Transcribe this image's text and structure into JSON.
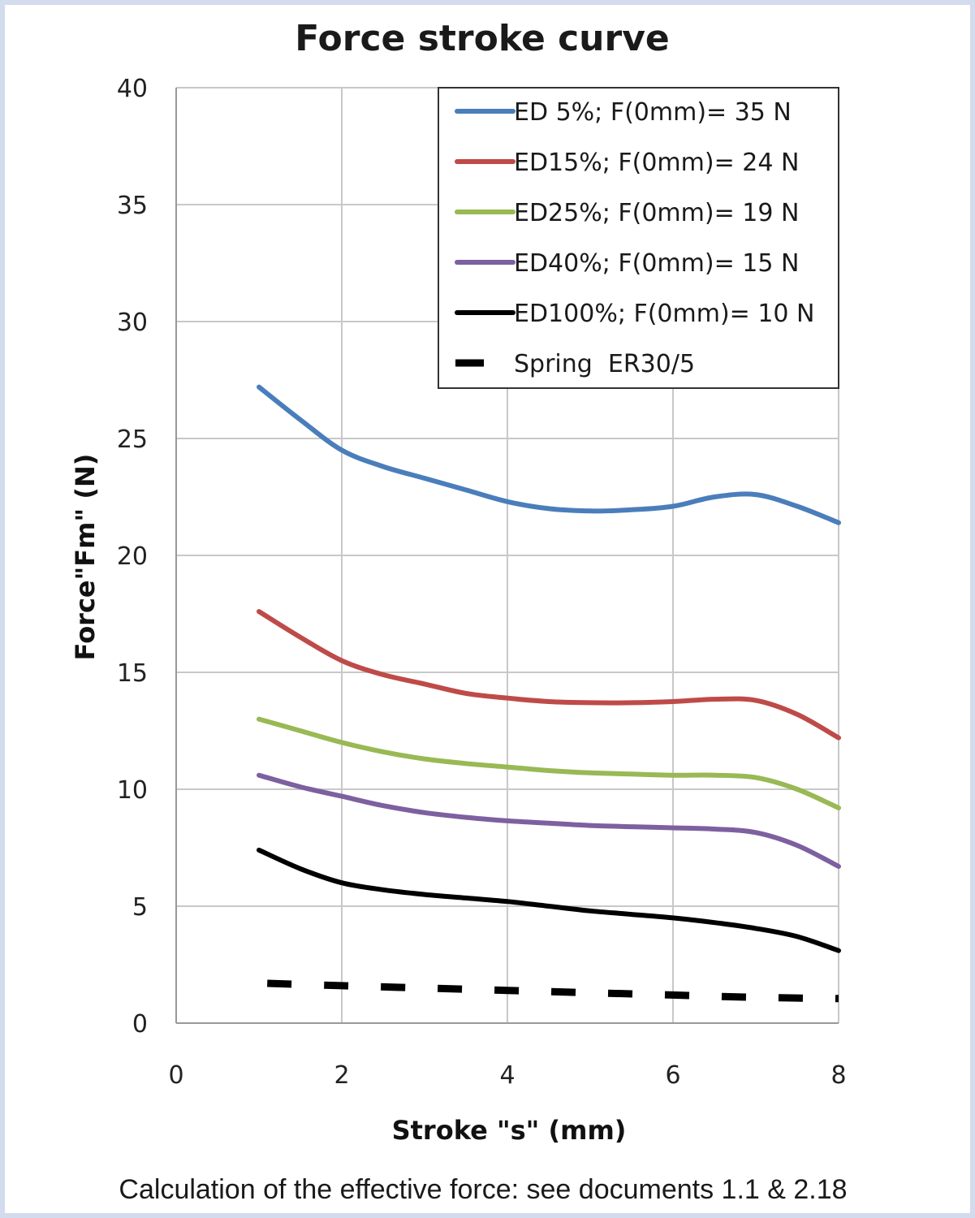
{
  "chart_data": {
    "type": "line",
    "title": "Force stroke curve",
    "xlabel": "Stroke \"s\" (mm)",
    "ylabel": "Force\"Fm\" (N)",
    "xlim": [
      0,
      8
    ],
    "ylim": [
      0,
      40
    ],
    "xticks": [
      0,
      2,
      4,
      6,
      8
    ],
    "yticks": [
      0,
      5,
      10,
      15,
      20,
      25,
      30,
      35,
      40
    ],
    "grid": true,
    "legend_position": "top-right",
    "series": [
      {
        "name": "ED 5%; F(0mm)= 35 N",
        "color": "#4a7ebb",
        "style": "solid",
        "points": [
          [
            1,
            27.2
          ],
          [
            1.5,
            25.8
          ],
          [
            2,
            24.5
          ],
          [
            2.5,
            23.8
          ],
          [
            3,
            23.3
          ],
          [
            3.5,
            22.8
          ],
          [
            4,
            22.3
          ],
          [
            4.5,
            22.0
          ],
          [
            5,
            21.9
          ],
          [
            5.5,
            21.95
          ],
          [
            6,
            22.1
          ],
          [
            6.5,
            22.5
          ],
          [
            7,
            22.6
          ],
          [
            7.5,
            22.1
          ],
          [
            8,
            21.4
          ]
        ]
      },
      {
        "name": "ED15%; F(0mm)= 24 N",
        "color": "#be4b48",
        "style": "solid",
        "points": [
          [
            1,
            17.6
          ],
          [
            1.5,
            16.5
          ],
          [
            2,
            15.5
          ],
          [
            2.5,
            14.9
          ],
          [
            3,
            14.5
          ],
          [
            3.5,
            14.1
          ],
          [
            4,
            13.9
          ],
          [
            4.5,
            13.75
          ],
          [
            5,
            13.7
          ],
          [
            5.5,
            13.7
          ],
          [
            6,
            13.75
          ],
          [
            6.5,
            13.85
          ],
          [
            7,
            13.8
          ],
          [
            7.5,
            13.2
          ],
          [
            8,
            12.2
          ]
        ]
      },
      {
        "name": "ED25%; F(0mm)= 19 N",
        "color": "#98b954",
        "style": "solid",
        "points": [
          [
            1,
            13.0
          ],
          [
            1.5,
            12.5
          ],
          [
            2,
            12.0
          ],
          [
            2.5,
            11.6
          ],
          [
            3,
            11.3
          ],
          [
            3.5,
            11.1
          ],
          [
            4,
            10.95
          ],
          [
            4.5,
            10.8
          ],
          [
            5,
            10.7
          ],
          [
            5.5,
            10.65
          ],
          [
            6,
            10.6
          ],
          [
            6.5,
            10.6
          ],
          [
            7,
            10.5
          ],
          [
            7.5,
            10.0
          ],
          [
            8,
            9.2
          ]
        ]
      },
      {
        "name": "ED40%; F(0mm)= 15 N",
        "color": "#7d60a0",
        "style": "solid",
        "points": [
          [
            1,
            10.6
          ],
          [
            1.5,
            10.1
          ],
          [
            2,
            9.7
          ],
          [
            2.5,
            9.3
          ],
          [
            3,
            9.0
          ],
          [
            3.5,
            8.8
          ],
          [
            4,
            8.65
          ],
          [
            4.5,
            8.55
          ],
          [
            5,
            8.45
          ],
          [
            5.5,
            8.4
          ],
          [
            6,
            8.35
          ],
          [
            6.5,
            8.3
          ],
          [
            7,
            8.15
          ],
          [
            7.5,
            7.6
          ],
          [
            8,
            6.7
          ]
        ]
      },
      {
        "name": "ED100%; F(0mm)= 10 N",
        "color": "#000000",
        "style": "solid",
        "points": [
          [
            1,
            7.4
          ],
          [
            1.5,
            6.6
          ],
          [
            2,
            6.0
          ],
          [
            2.5,
            5.7
          ],
          [
            3,
            5.5
          ],
          [
            3.5,
            5.35
          ],
          [
            4,
            5.2
          ],
          [
            4.5,
            5.0
          ],
          [
            5,
            4.8
          ],
          [
            5.5,
            4.65
          ],
          [
            6,
            4.5
          ],
          [
            6.5,
            4.3
          ],
          [
            7,
            4.05
          ],
          [
            7.5,
            3.7
          ],
          [
            8,
            3.1
          ]
        ]
      },
      {
        "name": "Spring  ER30/5",
        "color": "#000000",
        "style": "dashed",
        "points": [
          [
            1.1,
            1.7
          ],
          [
            2,
            1.6
          ],
          [
            3,
            1.5
          ],
          [
            4,
            1.4
          ],
          [
            5,
            1.3
          ],
          [
            6,
            1.2
          ],
          [
            7,
            1.1
          ],
          [
            8,
            1.05
          ]
        ]
      }
    ]
  },
  "caption": "Calculation of the effective force: see documents 1.1 & 2.18"
}
